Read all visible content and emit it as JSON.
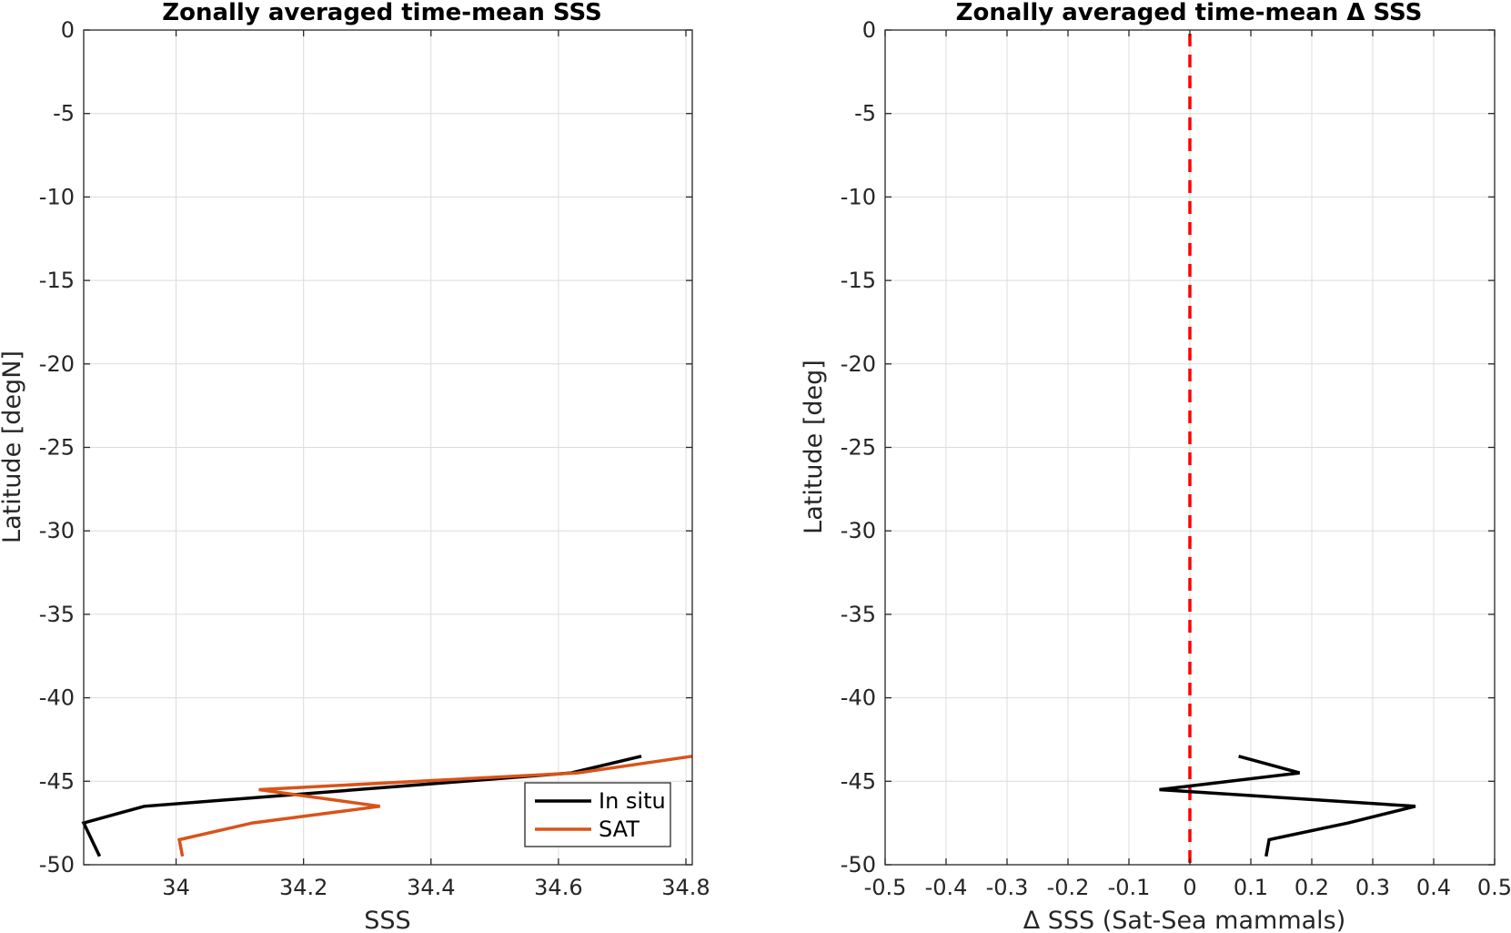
{
  "chart_data": [
    {
      "type": "line",
      "title": "Zonally averaged time-mean SSS",
      "xlabel": "SSS",
      "ylabel": "Latitude [degN]",
      "xlim": [
        33.855,
        34.81
      ],
      "ylim": [
        -50,
        0
      ],
      "xticks": [
        34,
        34.2,
        34.4,
        34.6,
        34.8
      ],
      "xtick_labels": [
        "34",
        "34.2",
        "34.4",
        "34.6",
        "34.8"
      ],
      "yticks": [
        0,
        -5,
        -10,
        -15,
        -20,
        -25,
        -30,
        -35,
        -40,
        -45,
        -50
      ],
      "ytick_labels": [
        "0",
        "-5",
        "-10",
        "-15",
        "-20",
        "-25",
        "-30",
        "-35",
        "-40",
        "-45",
        "-50"
      ],
      "grid": true,
      "legend": "bottom-right",
      "series": [
        {
          "name": "In situ",
          "color": "#000000",
          "x": [
            34.73,
            34.62,
            33.95,
            33.855,
            33.88
          ],
          "y": [
            -43.5,
            -44.5,
            -46.5,
            -47.5,
            -49.5
          ]
        },
        {
          "name": "SAT",
          "color": "#D95319",
          "x": [
            34.81,
            34.63,
            34.13,
            34.32,
            34.12,
            34.005,
            34.01
          ],
          "y": [
            -43.5,
            -44.5,
            -45.5,
            -46.5,
            -47.5,
            -48.5,
            -49.5
          ]
        }
      ]
    },
    {
      "type": "line",
      "title": "Zonally averaged time-mean Δ SSS",
      "xlabel": "Δ SSS (Sat-Sea mammals)",
      "ylabel": "Latitude [deg]",
      "xlim": [
        -0.5,
        0.5
      ],
      "ylim": [
        -50,
        0
      ],
      "xticks": [
        -0.5,
        -0.4,
        -0.3,
        -0.2,
        -0.1,
        0,
        0.1,
        0.2,
        0.3,
        0.4,
        0.5
      ],
      "xtick_labels": [
        "-0.5",
        "-0.4",
        "-0.3",
        "-0.2",
        "-0.1",
        "0",
        "0.1",
        "0.2",
        "0.3",
        "0.4",
        "0.5"
      ],
      "yticks": [
        0,
        -5,
        -10,
        -15,
        -20,
        -25,
        -30,
        -35,
        -40,
        -45,
        -50
      ],
      "ytick_labels": [
        "0",
        "-5",
        "-10",
        "-15",
        "-20",
        "-25",
        "-30",
        "-35",
        "-40",
        "-45",
        "-50"
      ],
      "grid": true,
      "series": [
        {
          "color": "#000000",
          "x": [
            0.08,
            0.18,
            -0.05,
            0.37,
            0.26,
            0.13,
            0.125
          ],
          "y": [
            -43.5,
            -44.5,
            -45.5,
            -46.5,
            -47.5,
            -48.5,
            -49.5
          ]
        }
      ],
      "reference_line": {
        "x": 0,
        "color": "#FF0000",
        "style": "dashed"
      }
    }
  ]
}
